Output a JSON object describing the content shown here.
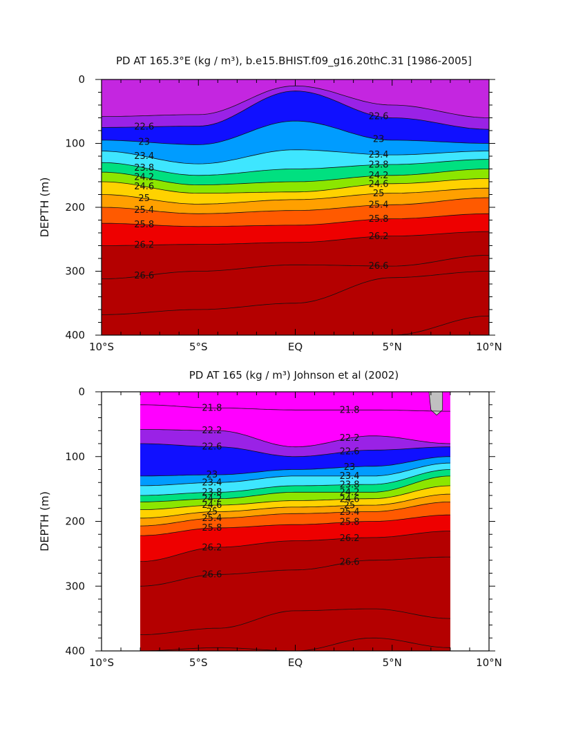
{
  "chart_data": [
    {
      "type": "contour",
      "title": "PD AT 165.3°E (kg / m³), b.e15.BHIST.f09_g16.20thC.31 [1986-2005]",
      "ylabel": "DEPTH (m)",
      "xlabel": "",
      "x_range": [
        -10,
        10
      ],
      "y_range": [
        0,
        400
      ],
      "x_tick_labels": [
        "10°S",
        "5°S",
        "EQ",
        "5°N",
        "10°N"
      ],
      "y_tick_labels": [
        "0",
        "100",
        "200",
        "300",
        "400"
      ],
      "data_lon_range": [
        -10,
        10
      ],
      "contour_labels": [
        "22.6",
        "23",
        "23.4",
        "23.8",
        "24.2",
        "24.6",
        "25",
        "25.4",
        "25.8",
        "26.2",
        "26.6"
      ],
      "isopycnals": [
        {
          "level": 22.2,
          "x": [
            -10,
            -5,
            0,
            5,
            10
          ],
          "depth": [
            58,
            55,
            10,
            40,
            60
          ]
        },
        {
          "level": 22.6,
          "x": [
            -10,
            -5,
            0,
            5,
            10
          ],
          "depth": [
            75,
            73,
            18,
            60,
            78
          ]
        },
        {
          "level": 23.0,
          "x": [
            -10,
            -5,
            0,
            5,
            10
          ],
          "depth": [
            95,
            102,
            65,
            95,
            100
          ]
        },
        {
          "level": 23.4,
          "x": [
            -10,
            -5,
            0,
            5,
            10
          ],
          "depth": [
            112,
            132,
            110,
            118,
            112
          ]
        },
        {
          "level": 23.8,
          "x": [
            -10,
            -5,
            0,
            5,
            10
          ],
          "depth": [
            130,
            150,
            140,
            133,
            125
          ]
        },
        {
          "level": 24.2,
          "x": [
            -10,
            -5,
            0,
            5,
            10
          ],
          "depth": [
            145,
            165,
            160,
            150,
            140
          ]
        },
        {
          "level": 24.6,
          "x": [
            -10,
            -5,
            0,
            5,
            10
          ],
          "depth": [
            160,
            178,
            176,
            163,
            155
          ]
        },
        {
          "level": 25.0,
          "x": [
            -10,
            -5,
            0,
            5,
            10
          ],
          "depth": [
            180,
            195,
            188,
            178,
            170
          ]
        },
        {
          "level": 25.4,
          "x": [
            -10,
            -5,
            0,
            5,
            10
          ],
          "depth": [
            200,
            210,
            205,
            196,
            185
          ]
        },
        {
          "level": 25.8,
          "x": [
            -10,
            -5,
            0,
            5,
            10
          ],
          "depth": [
            225,
            230,
            228,
            218,
            210
          ]
        },
        {
          "level": 26.2,
          "x": [
            -10,
            -5,
            0,
            5,
            10
          ],
          "depth": [
            260,
            258,
            255,
            245,
            238
          ]
        },
        {
          "level": 26.6,
          "x": [
            -10,
            -5,
            0,
            5,
            10
          ],
          "depth": [
            312,
            300,
            290,
            292,
            275
          ]
        },
        {
          "level": 27.0,
          "x": [
            -10,
            -5,
            0,
            5,
            10
          ],
          "depth": [
            368,
            360,
            350,
            310,
            300
          ]
        },
        {
          "level": 27.2,
          "x": [
            -10,
            -5,
            0,
            5,
            10
          ],
          "depth": [
            400,
            400,
            400,
            400,
            370
          ]
        }
      ]
    },
    {
      "type": "contour",
      "title": "PD AT 165 (kg / m³) Johnson et al (2002)",
      "ylabel": "DEPTH (m)",
      "xlabel": "",
      "x_range": [
        -10,
        10
      ],
      "y_range": [
        0,
        400
      ],
      "x_tick_labels": [
        "10°S",
        "5°S",
        "EQ",
        "5°N",
        "10°N"
      ],
      "y_tick_labels": [
        "0",
        "100",
        "200",
        "300",
        "400"
      ],
      "data_lon_range": [
        -8,
        8
      ],
      "contour_labels": [
        "21.8",
        "22.2",
        "22.6",
        "23",
        "23.4",
        "23.8",
        "24.2",
        "24.6",
        "25",
        "25.4",
        "25.8",
        "26.2",
        "26.6"
      ],
      "isopycnals": [
        {
          "level": 21.8,
          "x": [
            -8,
            -4,
            0,
            4,
            8
          ],
          "depth": [
            20,
            25,
            28,
            28,
            30
          ]
        },
        {
          "level": 22.2,
          "x": [
            -8,
            -4,
            0,
            4,
            8
          ],
          "depth": [
            58,
            60,
            85,
            68,
            80
          ]
        },
        {
          "level": 22.6,
          "x": [
            -8,
            -4,
            0,
            4,
            8
          ],
          "depth": [
            80,
            85,
            100,
            90,
            85
          ]
        },
        {
          "level": 23.0,
          "x": [
            -8,
            -4,
            0,
            4,
            8
          ],
          "depth": [
            130,
            128,
            120,
            115,
            100
          ]
        },
        {
          "level": 23.4,
          "x": [
            -8,
            -4,
            0,
            4,
            8
          ],
          "depth": [
            145,
            140,
            130,
            130,
            110
          ]
        },
        {
          "level": 23.8,
          "x": [
            -8,
            -4,
            0,
            4,
            8
          ],
          "depth": [
            160,
            155,
            145,
            143,
            120
          ]
        },
        {
          "level": 24.2,
          "x": [
            -8,
            -4,
            0,
            4,
            8
          ],
          "depth": [
            170,
            165,
            155,
            155,
            130
          ]
        },
        {
          "level": 24.6,
          "x": [
            -8,
            -4,
            0,
            4,
            8
          ],
          "depth": [
            182,
            175,
            168,
            165,
            145
          ]
        },
        {
          "level": 25.0,
          "x": [
            -8,
            -4,
            0,
            4,
            8
          ],
          "depth": [
            195,
            185,
            178,
            175,
            158
          ]
        },
        {
          "level": 25.4,
          "x": [
            -8,
            -4,
            0,
            4,
            8
          ],
          "depth": [
            207,
            195,
            188,
            185,
            170
          ]
        },
        {
          "level": 25.8,
          "x": [
            -8,
            -4,
            0,
            4,
            8
          ],
          "depth": [
            222,
            210,
            205,
            200,
            190
          ]
        },
        {
          "level": 26.2,
          "x": [
            -8,
            -4,
            0,
            4,
            8
          ],
          "depth": [
            262,
            240,
            230,
            225,
            215
          ]
        },
        {
          "level": 26.6,
          "x": [
            -8,
            -4,
            0,
            4,
            8
          ],
          "depth": [
            300,
            282,
            275,
            260,
            255
          ]
        },
        {
          "level": 27.0,
          "x": [
            -8,
            -4,
            0,
            4,
            8
          ],
          "depth": [
            375,
            365,
            338,
            335,
            350
          ]
        },
        {
          "level": 27.2,
          "x": [
            -8,
            -4,
            0,
            4,
            8
          ],
          "depth": [
            400,
            395,
            400,
            380,
            395
          ]
        }
      ]
    }
  ],
  "colors": {
    "palette": [
      "#ff00ff",
      "#c426e0",
      "#9a22e6",
      "#6a12ee",
      "#1010ff",
      "#0050ff",
      "#009cff",
      "#00c8ff",
      "#3ee6ff",
      "#7af2ff",
      "#00e080",
      "#00c800",
      "#8ce600",
      "#f0f000",
      "#ffd200",
      "#ffb030",
      "#ffa000",
      "#ff8200",
      "#ff5a00",
      "#ff1e00",
      "#ee0000",
      "#cc0000",
      "#b40000"
    ],
    "missing": "#c0c0c0"
  }
}
